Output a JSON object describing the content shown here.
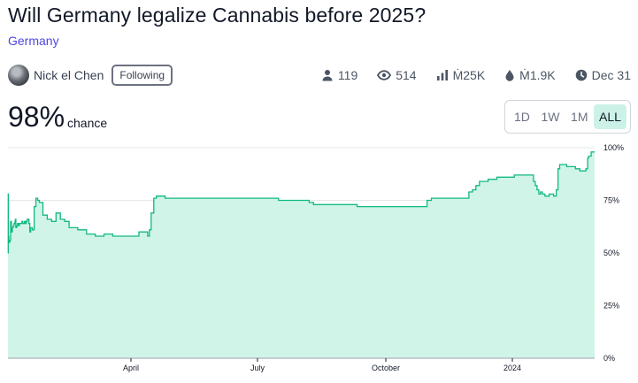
{
  "market": {
    "title": "Will Germany legalize Cannabis before 2025?",
    "tag": "Germany"
  },
  "author": {
    "name": "Nick el Chen",
    "follow_label": "Following"
  },
  "stats": {
    "traders": "119",
    "views": "514",
    "volume": "Ṁ25K",
    "liquidity": "Ṁ1.9K",
    "close_date": "Dec 31"
  },
  "probability": {
    "value": "98%",
    "label": "chance"
  },
  "range_buttons": [
    {
      "label": "1D",
      "active": false
    },
    {
      "label": "1W",
      "active": false
    },
    {
      "label": "1M",
      "active": false
    },
    {
      "label": "ALL",
      "active": true
    }
  ],
  "colors": {
    "line": "#11b981",
    "area": "#d1f4e8",
    "active_button": "#ccf2e7",
    "tag": "#4f46e5"
  },
  "chart_data": {
    "type": "area",
    "x_ticks": [
      "April",
      "July",
      "October",
      "2024"
    ],
    "y_ticks": [
      "0%",
      "25%",
      "50%",
      "75%",
      "100%"
    ],
    "ylim": [
      0,
      100
    ],
    "step": true,
    "series": [
      {
        "x": [
          0,
          0.3,
          0.5,
          1,
          2,
          3,
          4,
          5,
          6,
          7,
          8,
          8.5,
          9,
          10,
          11,
          12,
          13,
          14,
          15,
          16,
          17,
          18,
          19,
          20,
          21,
          22,
          24,
          25,
          26,
          28,
          30,
          32,
          34,
          36,
          40,
          45,
          50,
          55,
          60,
          65,
          70,
          80,
          90,
          100,
          110,
          120,
          130,
          140,
          150,
          160,
          162,
          164,
          167,
          170,
          175,
          180,
          185,
          190,
          200,
          210,
          220,
          250,
          280,
          290,
          295,
          298,
          300,
          303,
          310,
          330,
          342,
          345,
          350,
          360,
          380,
          400,
          420,
          440,
          460,
          478,
          480,
          482,
          485,
          490,
          500,
          520,
          524,
          528,
          532,
          536,
          540,
          550,
          560,
          580,
          595,
          600,
          602,
          604,
          606,
          608,
          610,
          612,
          615,
          620,
          625,
          628,
          630,
          632,
          634,
          640,
          650,
          655,
          660,
          662,
          664,
          665,
          668,
          672
        ],
        "values": [
          50,
          78,
          58,
          55,
          56,
          65,
          60,
          62,
          63,
          64,
          65,
          66,
          62,
          63,
          64,
          63,
          64,
          64,
          64,
          65,
          64,
          64,
          65,
          64,
          65,
          66,
          64,
          60,
          62,
          61,
          72,
          76,
          75,
          74,
          68,
          66,
          65,
          69,
          66,
          65,
          62,
          61,
          59,
          58,
          59,
          58,
          58,
          58,
          60,
          58,
          61,
          69,
          76,
          77,
          77,
          76,
          76,
          76,
          76,
          76,
          76,
          76,
          76,
          76,
          76,
          76,
          76,
          76,
          75,
          75,
          75,
          74,
          73,
          73,
          73,
          72,
          72,
          72,
          72,
          72,
          75,
          75,
          76,
          76,
          76,
          76,
          76,
          79,
          80,
          82,
          84,
          85,
          86,
          87,
          87,
          87,
          84,
          82,
          80,
          78,
          79,
          78,
          77,
          78,
          77,
          80,
          90,
          92,
          92,
          91,
          90,
          89,
          89,
          90,
          95,
          96,
          98,
          98
        ]
      }
    ]
  }
}
